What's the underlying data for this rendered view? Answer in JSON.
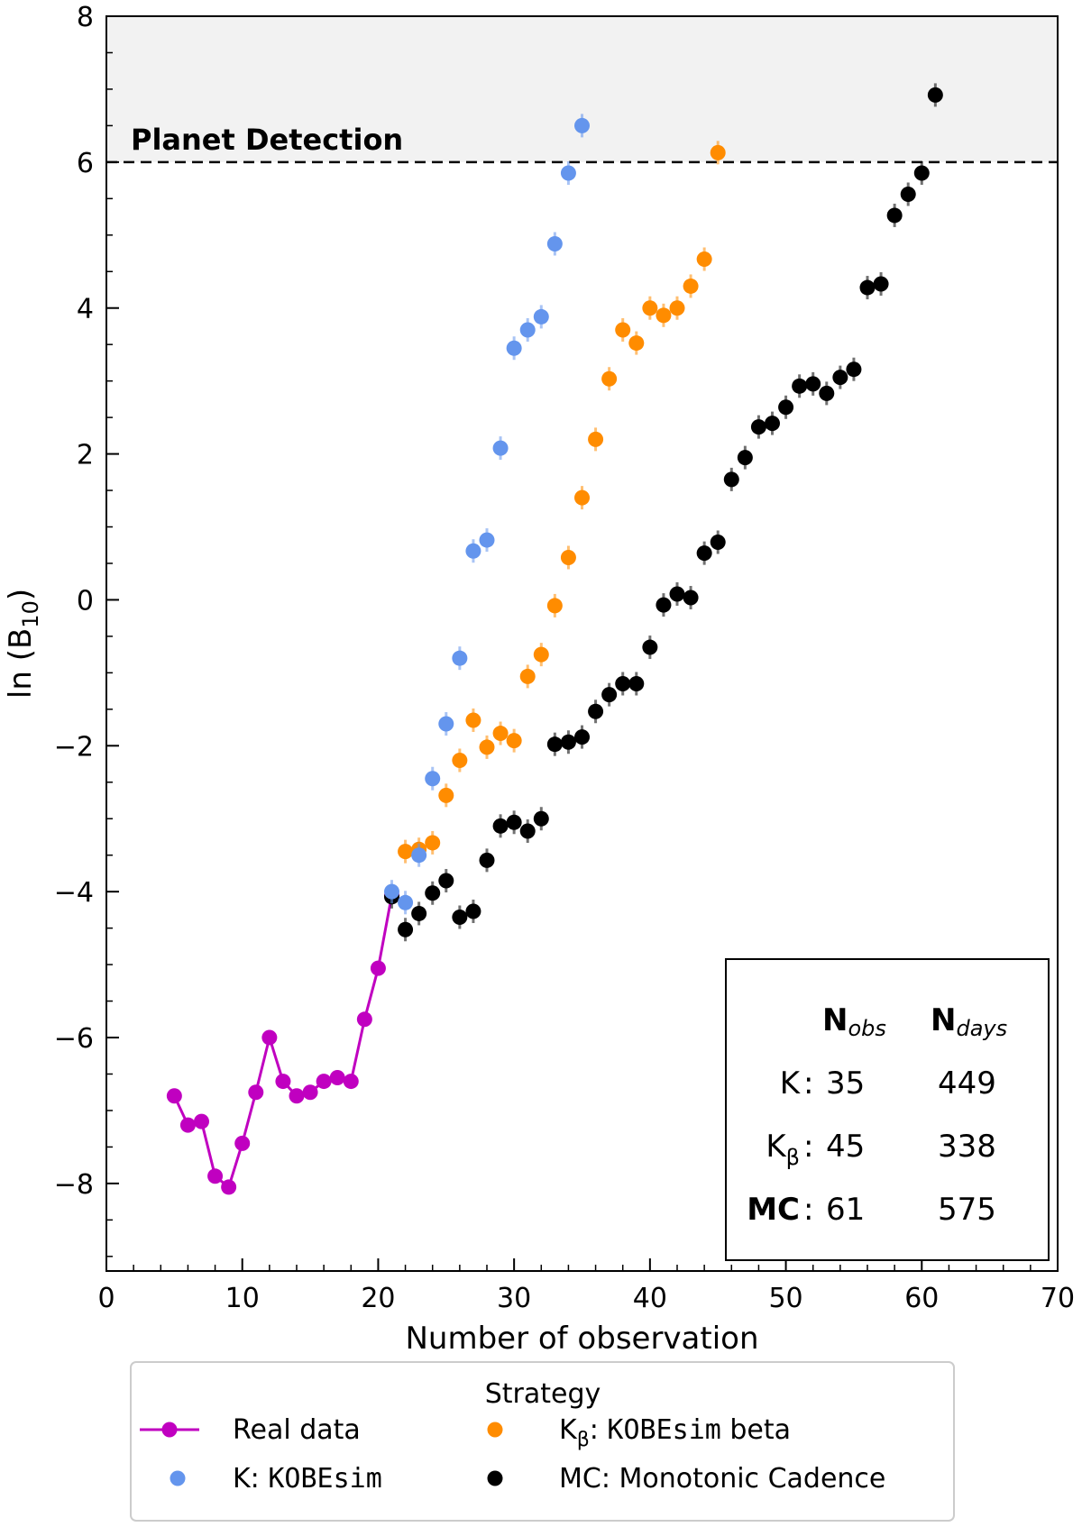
{
  "chart_data": {
    "type": "scatter",
    "xlabel": "Number of observation",
    "ylabel": "ln (B",
    "ylabel_sub": "10",
    "ylabel_close": ")",
    "xlim": [
      0,
      70
    ],
    "ylim": [
      -9.2,
      8
    ],
    "x_ticks": [
      0,
      10,
      20,
      30,
      40,
      50,
      60,
      70
    ],
    "y_ticks": [
      -8,
      -6,
      -4,
      -2,
      0,
      2,
      4,
      6,
      8
    ],
    "x_tick_labels": [
      "0",
      "10",
      "20",
      "30",
      "40",
      "50",
      "60",
      "70"
    ],
    "y_tick_labels": [
      "−8",
      "−6",
      "−4",
      "−2",
      "0",
      "2",
      "4",
      "6",
      "8"
    ],
    "threshold": {
      "value": 6,
      "label": "Planet Detection"
    },
    "series": [
      {
        "name": "Real data",
        "color": "#c000c0",
        "style": "line-marker",
        "x": [
          5,
          6,
          7,
          8,
          9,
          10,
          11,
          12,
          13,
          14,
          15,
          16,
          17,
          18,
          19,
          20,
          21
        ],
        "y": [
          -6.8,
          -7.2,
          -7.15,
          -7.9,
          -8.05,
          -7.45,
          -6.75,
          -6.0,
          -6.6,
          -6.8,
          -6.75,
          -6.6,
          -6.55,
          -6.6,
          -5.75,
          -5.05,
          -4.05
        ]
      },
      {
        "name": "K: KOBEsim",
        "color": "#6495ed",
        "style": "marker",
        "x": [
          21,
          22,
          23,
          24,
          25,
          26,
          27,
          28,
          29,
          30,
          31,
          32,
          33,
          34,
          35
        ],
        "y": [
          -4.0,
          -4.15,
          -3.5,
          -2.45,
          -1.7,
          -0.8,
          0.67,
          0.82,
          2.08,
          3.45,
          3.7,
          3.88,
          4.88,
          5.85,
          6.5
        ]
      },
      {
        "name": "Kβ: KOBEsim beta",
        "color": "#ff8c00",
        "style": "marker",
        "x": [
          22,
          23,
          24,
          25,
          26,
          27,
          28,
          29,
          30,
          31,
          32,
          33,
          34,
          35,
          36,
          37,
          38,
          39,
          40,
          41,
          42,
          43,
          44,
          45
        ],
        "y": [
          -3.45,
          -3.42,
          -3.33,
          -2.68,
          -2.2,
          -1.65,
          -2.02,
          -1.83,
          -1.93,
          -1.05,
          -0.75,
          -0.08,
          0.58,
          1.4,
          2.2,
          3.03,
          3.7,
          3.52,
          4.0,
          3.9,
          4.0,
          4.3,
          4.67,
          6.13
        ]
      },
      {
        "name": "MC: Monotonic Cadence",
        "color": "#000000",
        "style": "marker",
        "x": [
          21,
          22,
          23,
          24,
          25,
          26,
          27,
          28,
          29,
          30,
          31,
          32,
          33,
          34,
          35,
          36,
          37,
          38,
          39,
          40,
          41,
          42,
          43,
          44,
          45,
          46,
          47,
          48,
          49,
          50,
          51,
          52,
          53,
          54,
          55,
          56,
          57,
          58,
          59,
          60,
          61
        ],
        "y": [
          -4.07,
          -4.52,
          -4.3,
          -4.02,
          -3.85,
          -4.35,
          -4.27,
          -3.57,
          -3.1,
          -3.05,
          -3.17,
          -3.0,
          -1.98,
          -1.95,
          -1.88,
          -1.53,
          -1.3,
          -1.15,
          -1.15,
          -0.65,
          -0.07,
          0.08,
          0.03,
          0.64,
          0.79,
          1.65,
          1.95,
          2.37,
          2.42,
          2.64,
          2.93,
          2.96,
          2.83,
          3.05,
          3.16,
          4.28,
          4.33,
          5.27,
          5.56,
          5.85,
          6.92
        ]
      }
    ],
    "summary_box": {
      "col_obs": "N",
      "col_obs_sub": "obs",
      "col_days": "N",
      "col_days_sub": "days",
      "rows": [
        {
          "label": "K",
          "label_sub": "",
          "color": "#6495ed",
          "bold": false,
          "obs": "35",
          "days": "449"
        },
        {
          "label": "K",
          "label_sub": "β",
          "color": "#ff8c00",
          "bold": false,
          "obs": "45",
          "days": "338"
        },
        {
          "label": "MC",
          "label_sub": "",
          "color": "#000000",
          "bold": true,
          "obs": "61",
          "days": "575"
        }
      ]
    },
    "legend": {
      "title": "Strategy",
      "entries": [
        {
          "color": "#c000c0",
          "line": true,
          "prefix": "Real data",
          "mono": "",
          "suffix": ""
        },
        {
          "color": "#ff8c00",
          "line": false,
          "prefix": "K",
          "sub": "β",
          "prefix2": ": ",
          "mono": "KOBEsim",
          "suffix": " beta"
        },
        {
          "color": "#6495ed",
          "line": false,
          "prefix": "K: ",
          "mono": "KOBEsim",
          "suffix": ""
        },
        {
          "color": "#000000",
          "line": false,
          "prefix": "MC: Monotonic Cadence",
          "mono": "",
          "suffix": ""
        }
      ]
    }
  }
}
